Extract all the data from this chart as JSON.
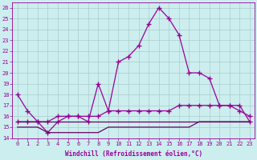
{
  "x": [
    0,
    1,
    2,
    3,
    4,
    5,
    6,
    7,
    8,
    9,
    10,
    11,
    12,
    13,
    14,
    15,
    16,
    17,
    18,
    19,
    20,
    21,
    22,
    23
  ],
  "line1": [
    18,
    16.5,
    15.5,
    14.5,
    15.5,
    16,
    16,
    15.5,
    19,
    16.5,
    21,
    21.5,
    22.5,
    24.5,
    26,
    25,
    23.5,
    20,
    20,
    19.5,
    17,
    17,
    17,
    15.5
  ],
  "line2": [
    15.5,
    15.5,
    15.5,
    15.5,
    16,
    16,
    16,
    16,
    16,
    16.5,
    16.5,
    16.5,
    16.5,
    16.5,
    16.5,
    16.5,
    17,
    17,
    17,
    17,
    17,
    17,
    16.5,
    16
  ],
  "line3": [
    15.5,
    15.5,
    15.5,
    15.5,
    15.5,
    15.5,
    15.5,
    15.5,
    15.5,
    15.5,
    15.5,
    15.5,
    15.5,
    15.5,
    15.5,
    15.5,
    15.5,
    15.5,
    15.5,
    15.5,
    15.5,
    15.5,
    15.5,
    15.5
  ],
  "line4": [
    15,
    15,
    15,
    14.5,
    14.5,
    14.5,
    14.5,
    14.5,
    14.5,
    15,
    15,
    15,
    15,
    15,
    15,
    15,
    15,
    15,
    15.5,
    15.5,
    15.5,
    15.5,
    15.5,
    15.5
  ],
  "line_color": "#990099",
  "line2_color": "#990099",
  "line3_color": "#660066",
  "line4_color": "#660066",
  "bg_color": "#cceeee",
  "grid_color": "#aacccc",
  "ymin": 14,
  "ymax": 26,
  "xmin": 0,
  "xmax": 23,
  "xlabel": "Windchill (Refroidissement éolien,°C)"
}
